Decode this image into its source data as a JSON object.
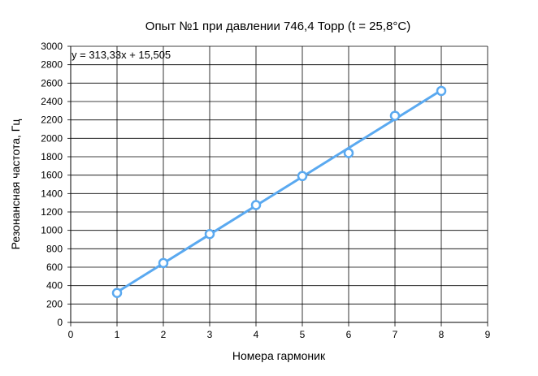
{
  "chart_data": {
    "type": "scatter",
    "title": "Опыт №1 при давлении 746,4 Торр (t = 25,8°С)",
    "xlabel": "Номера гармоник",
    "ylabel": "Резонансная частота, Гц",
    "xlim": [
      0,
      9
    ],
    "ylim": [
      0,
      3000
    ],
    "x_ticks": [
      "0",
      "1",
      "2",
      "3",
      "4",
      "5",
      "6",
      "7",
      "8",
      "9"
    ],
    "y_ticks": [
      "0",
      "200",
      "400",
      "600",
      "800",
      "1000",
      "1200",
      "1400",
      "1600",
      "1800",
      "2000",
      "2200",
      "2400",
      "2600",
      "2800",
      "3000"
    ],
    "grid": true,
    "series": [
      {
        "x": [
          1,
          2,
          3,
          4,
          5,
          6,
          7,
          8
        ],
        "y": [
          320,
          645,
          960,
          1275,
          1590,
          1840,
          2245,
          2515
        ],
        "color": "#5aa9f0"
      }
    ],
    "trendline": {
      "equation": "y = 313,33x + 15,505",
      "slope": 313.33,
      "intercept": 15.505,
      "x_range": [
        1,
        8
      ],
      "color": "#5aa9f0"
    }
  }
}
